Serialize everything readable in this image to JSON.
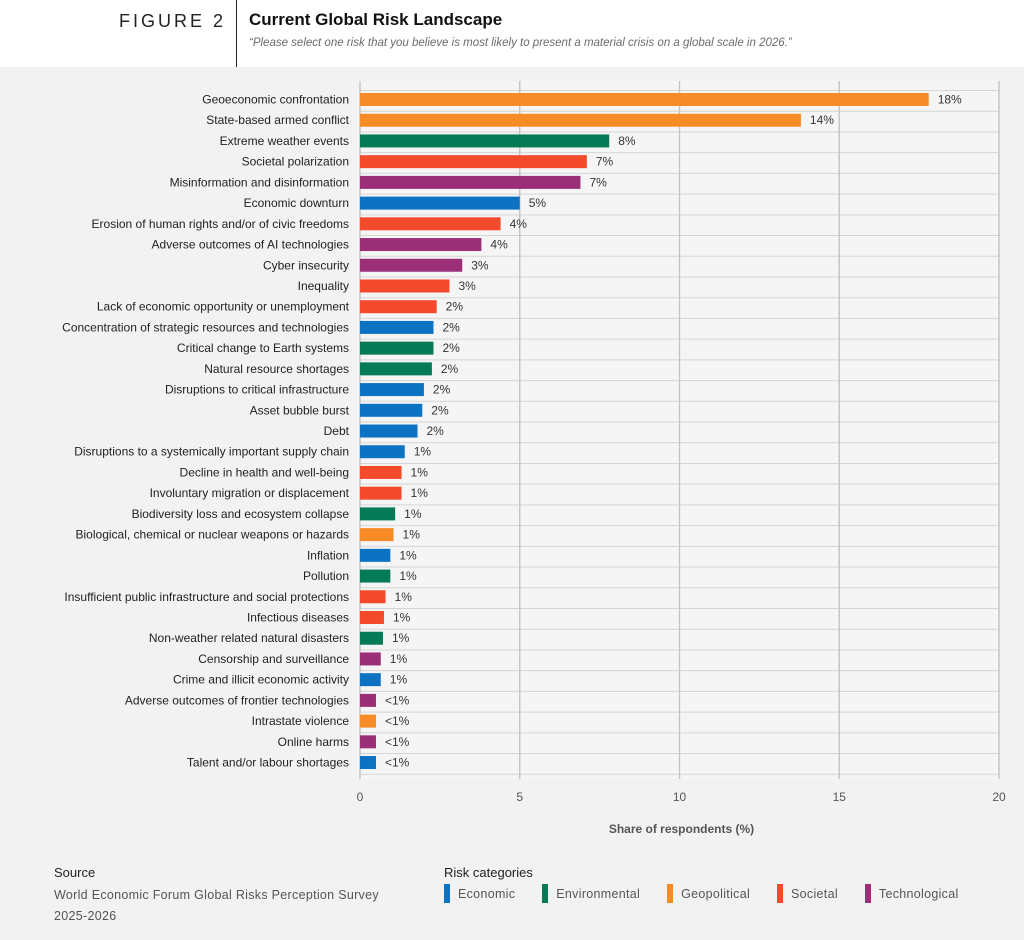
{
  "figure": {
    "label": "FIGURE 2",
    "title": "Current Global Risk Landscape",
    "subtitle": "“Please select one risk that you believe is most likely to present a material crisis on a global scale in 2026.”"
  },
  "colors": {
    "Economic": "#0c72c2",
    "Environmental": "#047a56",
    "Geopolitical": "#f68b28",
    "Societal": "#f44a2c",
    "Technological": "#9a2f78"
  },
  "chart_data": {
    "type": "bar",
    "orientation": "horizontal",
    "xlabel": "Share of respondents (%)",
    "xlim": [
      0,
      20
    ],
    "xticks": [
      0,
      5,
      10,
      15,
      20
    ],
    "grid": true,
    "bars": [
      {
        "label": "Geoeconomic confrontation",
        "value": 17.8,
        "display": "18%",
        "category": "Geopolitical"
      },
      {
        "label": "State-based armed conflict",
        "value": 13.8,
        "display": "14%",
        "category": "Geopolitical"
      },
      {
        "label": "Extreme weather events",
        "value": 7.8,
        "display": "8%",
        "category": "Environmental"
      },
      {
        "label": "Societal polarization",
        "value": 7.1,
        "display": "7%",
        "category": "Societal"
      },
      {
        "label": "Misinformation and disinformation",
        "value": 6.9,
        "display": "7%",
        "category": "Technological"
      },
      {
        "label": "Economic downturn",
        "value": 5.0,
        "display": "5%",
        "category": "Economic"
      },
      {
        "label": "Erosion of human rights and/or of civic freedoms",
        "value": 4.4,
        "display": "4%",
        "category": "Societal"
      },
      {
        "label": "Adverse outcomes of AI technologies",
        "value": 3.8,
        "display": "4%",
        "category": "Technological"
      },
      {
        "label": "Cyber insecurity",
        "value": 3.2,
        "display": "3%",
        "category": "Technological"
      },
      {
        "label": "Inequality",
        "value": 2.8,
        "display": "3%",
        "category": "Societal"
      },
      {
        "label": "Lack of economic opportunity or unemployment",
        "value": 2.4,
        "display": "2%",
        "category": "Societal"
      },
      {
        "label": "Concentration of strategic resources and technologies",
        "value": 2.3,
        "display": "2%",
        "category": "Economic"
      },
      {
        "label": "Critical change to Earth systems",
        "value": 2.3,
        "display": "2%",
        "category": "Environmental"
      },
      {
        "label": "Natural resource shortages",
        "value": 2.25,
        "display": "2%",
        "category": "Environmental"
      },
      {
        "label": "Disruptions to critical infrastructure",
        "value": 2.0,
        "display": "2%",
        "category": "Economic"
      },
      {
        "label": "Asset bubble burst",
        "value": 1.95,
        "display": "2%",
        "category": "Economic"
      },
      {
        "label": "Debt",
        "value": 1.8,
        "display": "2%",
        "category": "Economic"
      },
      {
        "label": "Disruptions to a systemically important supply chain",
        "value": 1.4,
        "display": "1%",
        "category": "Economic"
      },
      {
        "label": "Decline in health and well-being",
        "value": 1.3,
        "display": "1%",
        "category": "Societal"
      },
      {
        "label": "Involuntary migration or displacement",
        "value": 1.3,
        "display": "1%",
        "category": "Societal"
      },
      {
        "label": "Biodiversity loss and ecosystem collapse",
        "value": 1.1,
        "display": "1%",
        "category": "Environmental"
      },
      {
        "label": "Biological, chemical or nuclear weapons or hazards",
        "value": 1.05,
        "display": "1%",
        "category": "Geopolitical"
      },
      {
        "label": "Inflation",
        "value": 0.95,
        "display": "1%",
        "category": "Economic"
      },
      {
        "label": "Pollution",
        "value": 0.95,
        "display": "1%",
        "category": "Environmental"
      },
      {
        "label": "Insufficient public infrastructure and social protections",
        "value": 0.8,
        "display": "1%",
        "category": "Societal"
      },
      {
        "label": "Infectious diseases",
        "value": 0.75,
        "display": "1%",
        "category": "Societal"
      },
      {
        "label": "Non-weather related natural disasters",
        "value": 0.72,
        "display": "1%",
        "category": "Environmental"
      },
      {
        "label": "Censorship and surveillance",
        "value": 0.65,
        "display": "1%",
        "category": "Technological"
      },
      {
        "label": "Crime and illicit economic activity",
        "value": 0.65,
        "display": "1%",
        "category": "Economic"
      },
      {
        "label": "Adverse outcomes of frontier technologies",
        "value": 0.5,
        "display": "<1%",
        "category": "Technological"
      },
      {
        "label": "Intrastate violence",
        "value": 0.5,
        "display": "<1%",
        "category": "Geopolitical"
      },
      {
        "label": "Online harms",
        "value": 0.5,
        "display": "<1%",
        "category": "Technological"
      },
      {
        "label": "Talent and/or labour shortages",
        "value": 0.5,
        "display": "<1%",
        "category": "Economic"
      }
    ]
  },
  "source": {
    "heading": "Source",
    "text": "World Economic Forum Global Risks Perception Survey 2025-2026"
  },
  "legend": {
    "heading": "Risk categories",
    "items": [
      "Economic",
      "Environmental",
      "Geopolitical",
      "Societal",
      "Technological"
    ]
  }
}
